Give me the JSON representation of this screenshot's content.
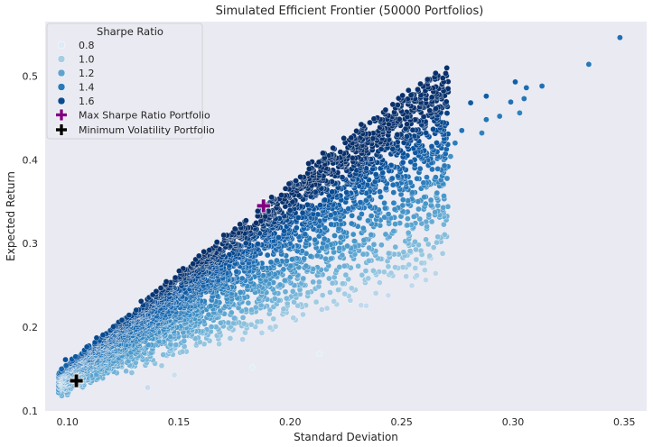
{
  "chart_data": {
    "type": "scatter",
    "title": "Simulated Efficient Frontier (50000 Portfolios)",
    "xlabel": "Standard Deviation",
    "ylabel": "Expected Return",
    "xlim": [
      0.09,
      0.36
    ],
    "ylim": [
      0.1,
      0.565
    ],
    "xticks": [
      0.1,
      0.15,
      0.2,
      0.25,
      0.3,
      0.35
    ],
    "xtick_labels": [
      "0.10",
      "0.15",
      "0.20",
      "0.25",
      "0.30",
      "0.35"
    ],
    "yticks": [
      0.1,
      0.2,
      0.3,
      0.4,
      0.5
    ],
    "ytick_labels": [
      "0.1",
      "0.2",
      "0.3",
      "0.4",
      "0.5"
    ],
    "grid": false,
    "background": "#eaeaf2",
    "legend": {
      "placement": "top-left",
      "title": "Sharpe Ratio",
      "hue_entries": [
        {
          "label": "0.8",
          "color": "#deebf7"
        },
        {
          "label": "1.0",
          "color": "#a6cde3"
        },
        {
          "label": "1.2",
          "color": "#5fa2cf"
        },
        {
          "label": "1.4",
          "color": "#2a7ab8"
        },
        {
          "label": "1.6",
          "color": "#0a4a8f"
        }
      ],
      "marker_entries": [
        {
          "label": "Max Sharpe Ratio Portfolio",
          "color": "#800080"
        },
        {
          "label": "Minimum Volatility Portfolio",
          "color": "#000000"
        }
      ]
    },
    "colormap": "Blues",
    "hue_range": [
      0.7,
      1.75
    ],
    "series": [
      {
        "name": "Max Sharpe Ratio Portfolio",
        "marker": "plus",
        "color": "#800080",
        "x": [
          0.188
        ],
        "y": [
          0.345
        ]
      },
      {
        "name": "Minimum Volatility Portfolio",
        "marker": "plus",
        "color": "#000000",
        "x": [
          0.104
        ],
        "y": [
          0.136
        ]
      }
    ],
    "outliers": [
      {
        "x": 0.348,
        "y": 0.546,
        "sharpe": 1.49
      },
      {
        "x": 0.334,
        "y": 0.514,
        "sharpe": 1.46
      },
      {
        "x": 0.313,
        "y": 0.488,
        "sharpe": 1.49
      },
      {
        "x": 0.306,
        "y": 0.486,
        "sharpe": 1.51
      },
      {
        "x": 0.301,
        "y": 0.493,
        "sharpe": 1.56
      },
      {
        "x": 0.305,
        "y": 0.473,
        "sharpe": 1.47
      },
      {
        "x": 0.299,
        "y": 0.469,
        "sharpe": 1.49
      },
      {
        "x": 0.303,
        "y": 0.456,
        "sharpe": 1.42
      },
      {
        "x": 0.288,
        "y": 0.476,
        "sharpe": 1.57
      },
      {
        "x": 0.281,
        "y": 0.468,
        "sharpe": 1.58
      },
      {
        "x": 0.294,
        "y": 0.452,
        "sharpe": 1.45
      },
      {
        "x": 0.288,
        "y": 0.448,
        "sharpe": 1.47
      },
      {
        "x": 0.286,
        "y": 0.432,
        "sharpe": 1.42
      },
      {
        "x": 0.277,
        "y": 0.435,
        "sharpe": 1.48
      },
      {
        "x": 0.274,
        "y": 0.42,
        "sharpe": 1.44
      },
      {
        "x": 0.269,
        "y": 0.4,
        "sharpe": 1.38
      },
      {
        "x": 0.265,
        "y": 0.372,
        "sharpe": 1.28
      },
      {
        "x": 0.272,
        "y": 0.404,
        "sharpe": 1.36
      },
      {
        "x": 0.244,
        "y": 0.238,
        "sharpe": 0.96
      },
      {
        "x": 0.213,
        "y": 0.168,
        "sharpe": 0.81
      },
      {
        "x": 0.183,
        "y": 0.152,
        "sharpe": 0.81
      },
      {
        "x": 0.148,
        "y": 0.143,
        "sharpe": 0.93
      },
      {
        "x": 0.136,
        "y": 0.128,
        "sharpe": 0.96
      }
    ]
  }
}
